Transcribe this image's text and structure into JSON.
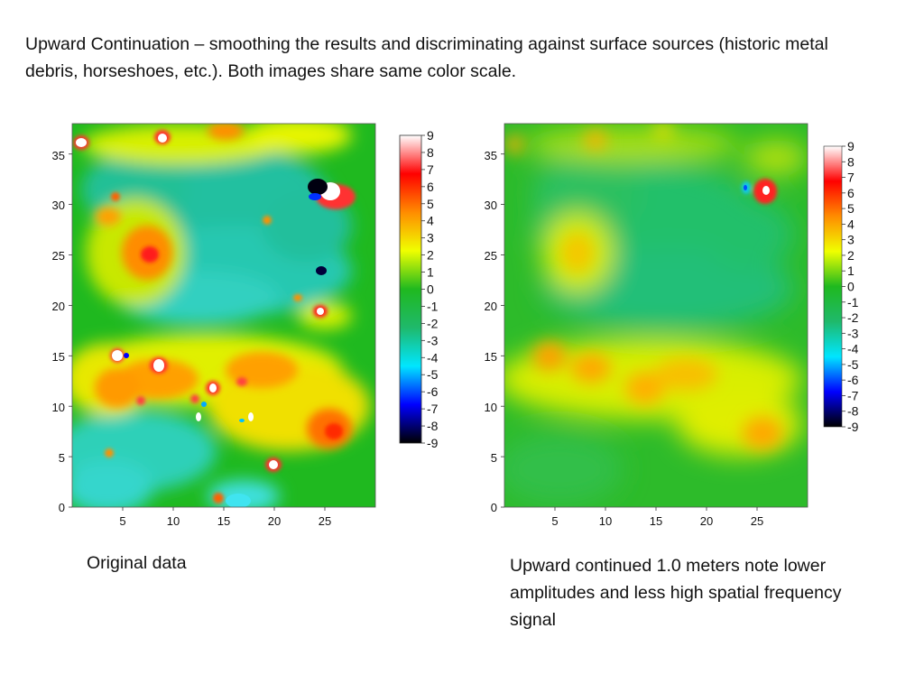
{
  "slide": {
    "title": "Upward Continuation – smoothing the results and discriminating against surface sources (historic metal debris, horseshoes, etc.). Both images share same color scale.",
    "caption_left": "Original data",
    "caption_right": "Upward continued 1.0 meters note lower amplitudes and less high spatial frequency signal"
  },
  "colormap": [
    "#000000",
    "#0000ff",
    "#00e6ff",
    "#1fb96b",
    "#1fb91f",
    "#f0ff00",
    "#ff8c00",
    "#ff0000",
    "#ffffff"
  ],
  "maps": [
    {
      "id": "original",
      "x_ticks": [
        "5",
        "10",
        "15",
        "20",
        "25"
      ],
      "y_ticks": [
        "0",
        "5",
        "10",
        "15",
        "20",
        "25",
        "30",
        "35"
      ],
      "colorbar_labels": [
        "9",
        "8",
        "7",
        "6",
        "5",
        "4",
        "3",
        "2",
        "1",
        "0",
        "-1",
        "-2",
        "-3",
        "-4",
        "-5",
        "-6",
        "-7",
        "-8",
        "-9"
      ]
    },
    {
      "id": "upward-continued",
      "x_ticks": [
        "5",
        "10",
        "15",
        "20",
        "25"
      ],
      "y_ticks": [
        "0",
        "5",
        "10",
        "15",
        "20",
        "25",
        "30",
        "35"
      ],
      "colorbar_labels": [
        "9",
        "8",
        "7",
        "6",
        "5",
        "4",
        "3",
        "2",
        "1",
        "0",
        "-1",
        "-2",
        "-3",
        "-4",
        "-5",
        "-6",
        "-7",
        "-8",
        "-9"
      ]
    }
  ]
}
